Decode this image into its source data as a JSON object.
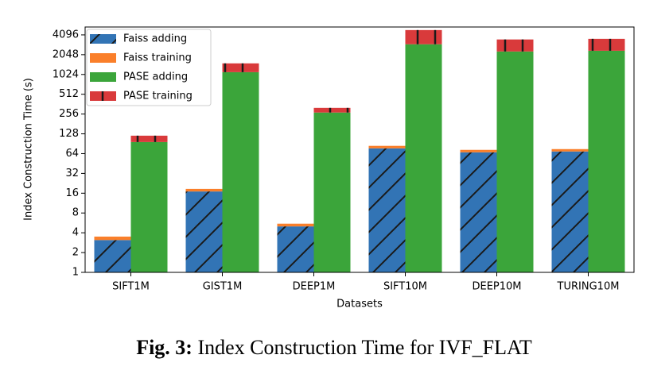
{
  "chart_data": {
    "type": "bar",
    "stacked": true,
    "log_scale": "y",
    "log_base": 2,
    "ylabel": "Index Construction Time (s)",
    "xlabel": "Datasets",
    "caption_label": "Fig. 3:",
    "caption": "Index Construction Time for IVF_FLAT",
    "legend": "upper left",
    "categories": [
      "SIFT1M",
      "GIST1M",
      "DEEP1M",
      "SIFT10M",
      "DEEP10M",
      "TURING10M"
    ],
    "series": [
      {
        "name": "Faiss adding",
        "color": "#3274b5",
        "hatch": "/",
        "values": [
          3.1,
          17,
          5.0,
          77,
          67,
          69
        ]
      },
      {
        "name": "Faiss training",
        "color": "#fa7f2a",
        "values": [
          0.4,
          1.6,
          0.5,
          7,
          6,
          6
        ]
      },
      {
        "name": "PASE adding",
        "color": "#3ba53a",
        "values": [
          96,
          1110,
          270,
          2950,
          2290,
          2350
        ]
      },
      {
        "name": "PASE training",
        "color": "#d93a3b",
        "hatch": "|",
        "values": [
          24,
          400,
          48,
          1900,
          1200,
          1220
        ]
      }
    ],
    "ylim": [
      1,
      5400
    ],
    "yticks": [
      1,
      2,
      4,
      8,
      16,
      32,
      64,
      128,
      256,
      512,
      1024,
      2048,
      4096
    ]
  }
}
